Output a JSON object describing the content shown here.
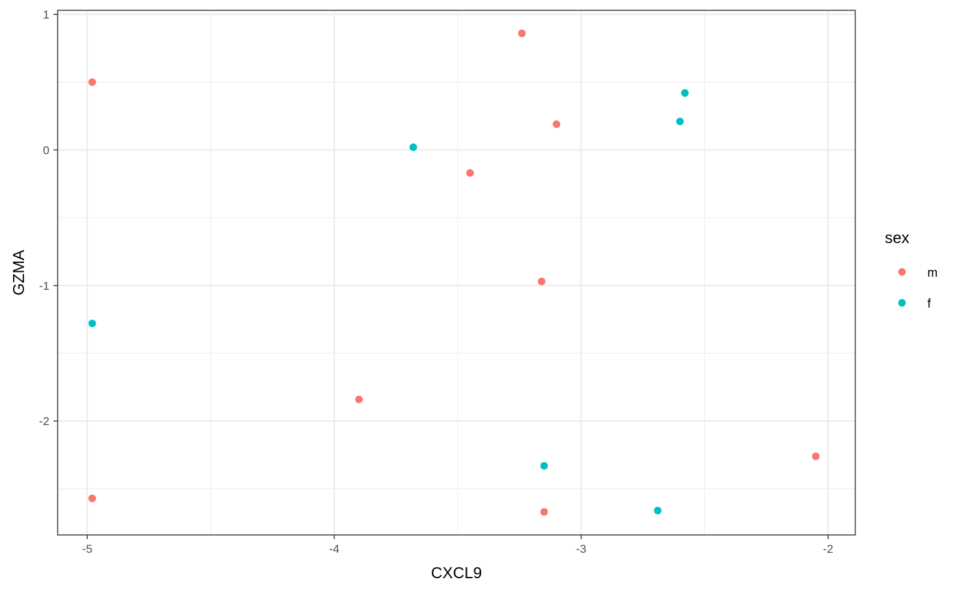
{
  "chart_data": {
    "type": "scatter",
    "xlabel": "CXCL9",
    "ylabel": "GZMA",
    "xlim": [
      -5.12,
      -1.89
    ],
    "ylim": [
      -2.84,
      1.03
    ],
    "x_ticks": [
      -5,
      -4,
      -3,
      -2
    ],
    "x_tick_labels": [
      "-5",
      "-4",
      "-3",
      "-2"
    ],
    "y_ticks": [
      -2,
      -1,
      0,
      1
    ],
    "y_tick_labels": [
      "-2",
      "-1",
      "0",
      "1"
    ],
    "grid": true,
    "legend": {
      "title": "sex",
      "position": "right",
      "entries": [
        {
          "label": "m",
          "color": "#F8766D"
        },
        {
          "label": "f",
          "color": "#00BFC4"
        }
      ]
    },
    "series": [
      {
        "name": "m",
        "color": "#F8766D",
        "points": [
          {
            "x": -4.98,
            "y": 0.5
          },
          {
            "x": -4.98,
            "y": -2.57
          },
          {
            "x": -3.9,
            "y": -1.84
          },
          {
            "x": -3.45,
            "y": -0.17
          },
          {
            "x": -3.24,
            "y": 0.86
          },
          {
            "x": -3.1,
            "y": 0.19
          },
          {
            "x": -3.16,
            "y": -0.97
          },
          {
            "x": -3.15,
            "y": -2.67
          },
          {
            "x": -2.05,
            "y": -2.26
          }
        ]
      },
      {
        "name": "f",
        "color": "#00BFC4",
        "points": [
          {
            "x": -4.98,
            "y": -1.28
          },
          {
            "x": -3.68,
            "y": 0.02
          },
          {
            "x": -2.6,
            "y": 0.21
          },
          {
            "x": -2.58,
            "y": 0.42
          },
          {
            "x": -3.15,
            "y": -2.33
          },
          {
            "x": -2.69,
            "y": -2.66
          }
        ]
      }
    ]
  }
}
